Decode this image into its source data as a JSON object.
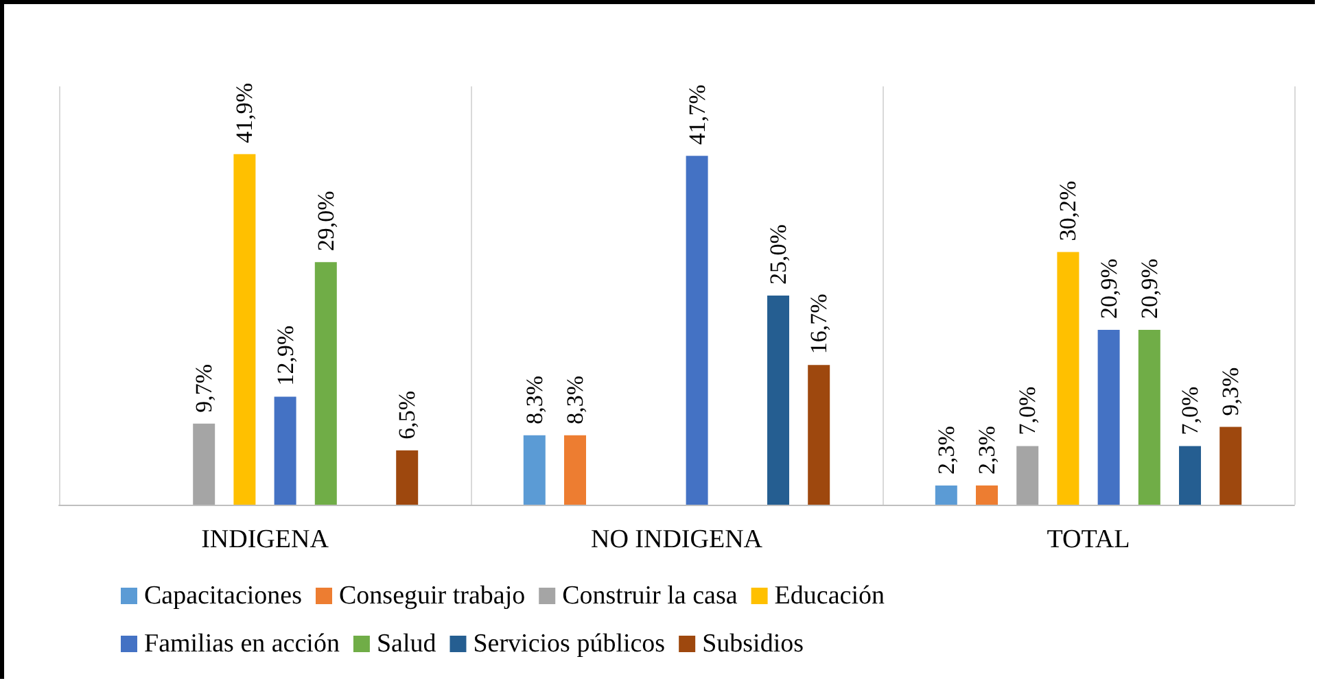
{
  "chart_data": {
    "type": "bar",
    "categories": [
      "INDIGENA",
      "NO INDIGENA",
      "TOTAL"
    ],
    "series": [
      {
        "name": "Capacitaciones",
        "color": "#5b9bd5",
        "values": [
          null,
          8.3,
          2.3
        ],
        "value_labels": [
          null,
          "8,3%",
          "2,3%"
        ]
      },
      {
        "name": "Conseguir trabajo",
        "color": "#ed7d31",
        "values": [
          null,
          8.3,
          2.3
        ],
        "value_labels": [
          null,
          "8,3%",
          "2,3%"
        ]
      },
      {
        "name": "Construir la casa",
        "color": "#a5a5a5",
        "values": [
          9.7,
          null,
          7.0
        ],
        "value_labels": [
          "9,7%",
          null,
          "7,0%"
        ]
      },
      {
        "name": "Educación",
        "color": "#ffc000",
        "values": [
          41.9,
          null,
          30.2
        ],
        "value_labels": [
          "41,9%",
          null,
          "30,2%"
        ]
      },
      {
        "name": "Familias en acción",
        "color": "#4472c4",
        "values": [
          12.9,
          41.7,
          20.9
        ],
        "value_labels": [
          "12,9%",
          "41,7%",
          "20,9%"
        ]
      },
      {
        "name": "Salud",
        "color": "#70ad47",
        "values": [
          29.0,
          null,
          20.9
        ],
        "value_labels": [
          "29,0%",
          null,
          "20,9%"
        ]
      },
      {
        "name": "Servicios públicos",
        "color": "#255e91",
        "values": [
          null,
          25.0,
          7.0
        ],
        "value_labels": [
          null,
          "25,0%",
          "7,0%"
        ]
      },
      {
        "name": "Subsidios",
        "color": "#9e480e",
        "values": [
          6.5,
          16.7,
          9.3
        ],
        "value_labels": [
          "6,5%",
          "16,7%",
          "9,3%"
        ]
      }
    ],
    "grid": "x",
    "legend": "bottom",
    "tick_labels": "x"
  }
}
